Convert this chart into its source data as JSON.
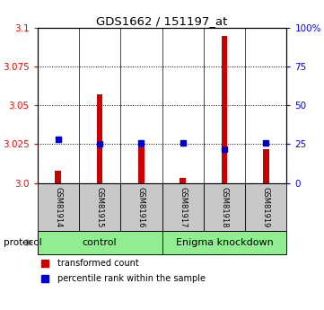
{
  "title": "GDS1662 / 151197_at",
  "samples": [
    "GSM81914",
    "GSM81915",
    "GSM81916",
    "GSM81917",
    "GSM81918",
    "GSM81919"
  ],
  "red_values": [
    3.008,
    3.057,
    3.025,
    3.003,
    3.095,
    3.022
  ],
  "blue_values": [
    3.028,
    3.025,
    3.026,
    3.026,
    3.022,
    3.026
  ],
  "ylim_left": [
    3.0,
    3.1
  ],
  "ylim_right": [
    0,
    100
  ],
  "left_ticks": [
    3.0,
    3.025,
    3.05,
    3.075,
    3.1
  ],
  "right_ticks": [
    0,
    25,
    50,
    75,
    100
  ],
  "right_tick_labels": [
    "0",
    "25",
    "50",
    "75",
    "100%"
  ],
  "red_color": "#CC0000",
  "blue_color": "#0000CC",
  "bar_width": 0.15,
  "sample_bg": "#C8C8C8",
  "group_color": "#90EE90",
  "control_label": "control",
  "enigma_label": "Enigma knockdown",
  "protocol_label": "protocol",
  "legend_red": "transformed count",
  "legend_blue": "percentile rank within the sample"
}
